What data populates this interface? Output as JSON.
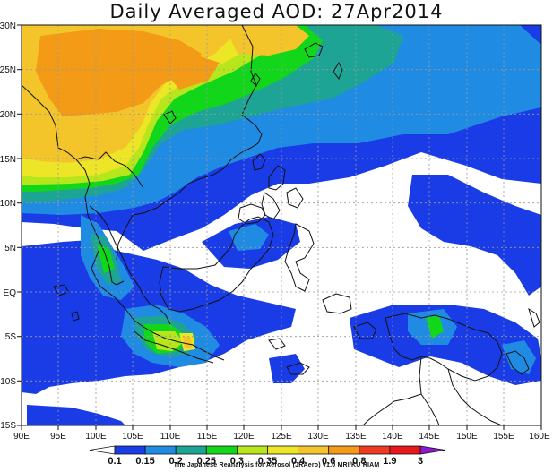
{
  "title": "Daily Averaged AOD: 27Apr2014",
  "credit": "The Japanese Reanalysis for Aerosol (JRAero) v1.0 MRI/KU RIAM",
  "map": {
    "lon_range": [
      90,
      160
    ],
    "lat_range": [
      -15,
      30
    ],
    "lon_labels": [
      "90E",
      "95E",
      "100E",
      "105E",
      "110E",
      "115E",
      "120E",
      "125E",
      "130E",
      "135E",
      "140E",
      "145E",
      "150E",
      "155E",
      "160E"
    ],
    "lat_labels": [
      "15S",
      "10S",
      "5S",
      "EQ",
      "5N",
      "10N",
      "15N",
      "20N",
      "25N",
      "30N"
    ],
    "grid": true
  },
  "colorbar": {
    "labels": [
      "0.1",
      "0.15",
      "0.2",
      "0.25",
      "0.3",
      "0.35",
      "0.4",
      "0.6",
      "0.8",
      "1.9",
      "3"
    ],
    "colors": [
      "#ffffff",
      "#1a3ce6",
      "#1f8be3",
      "#1ea495",
      "#12d61a",
      "#b7e61c",
      "#ece627",
      "#f4c52b",
      "#f39a17",
      "#ee3a22",
      "#e8181a",
      "#8e16cf"
    ]
  }
}
